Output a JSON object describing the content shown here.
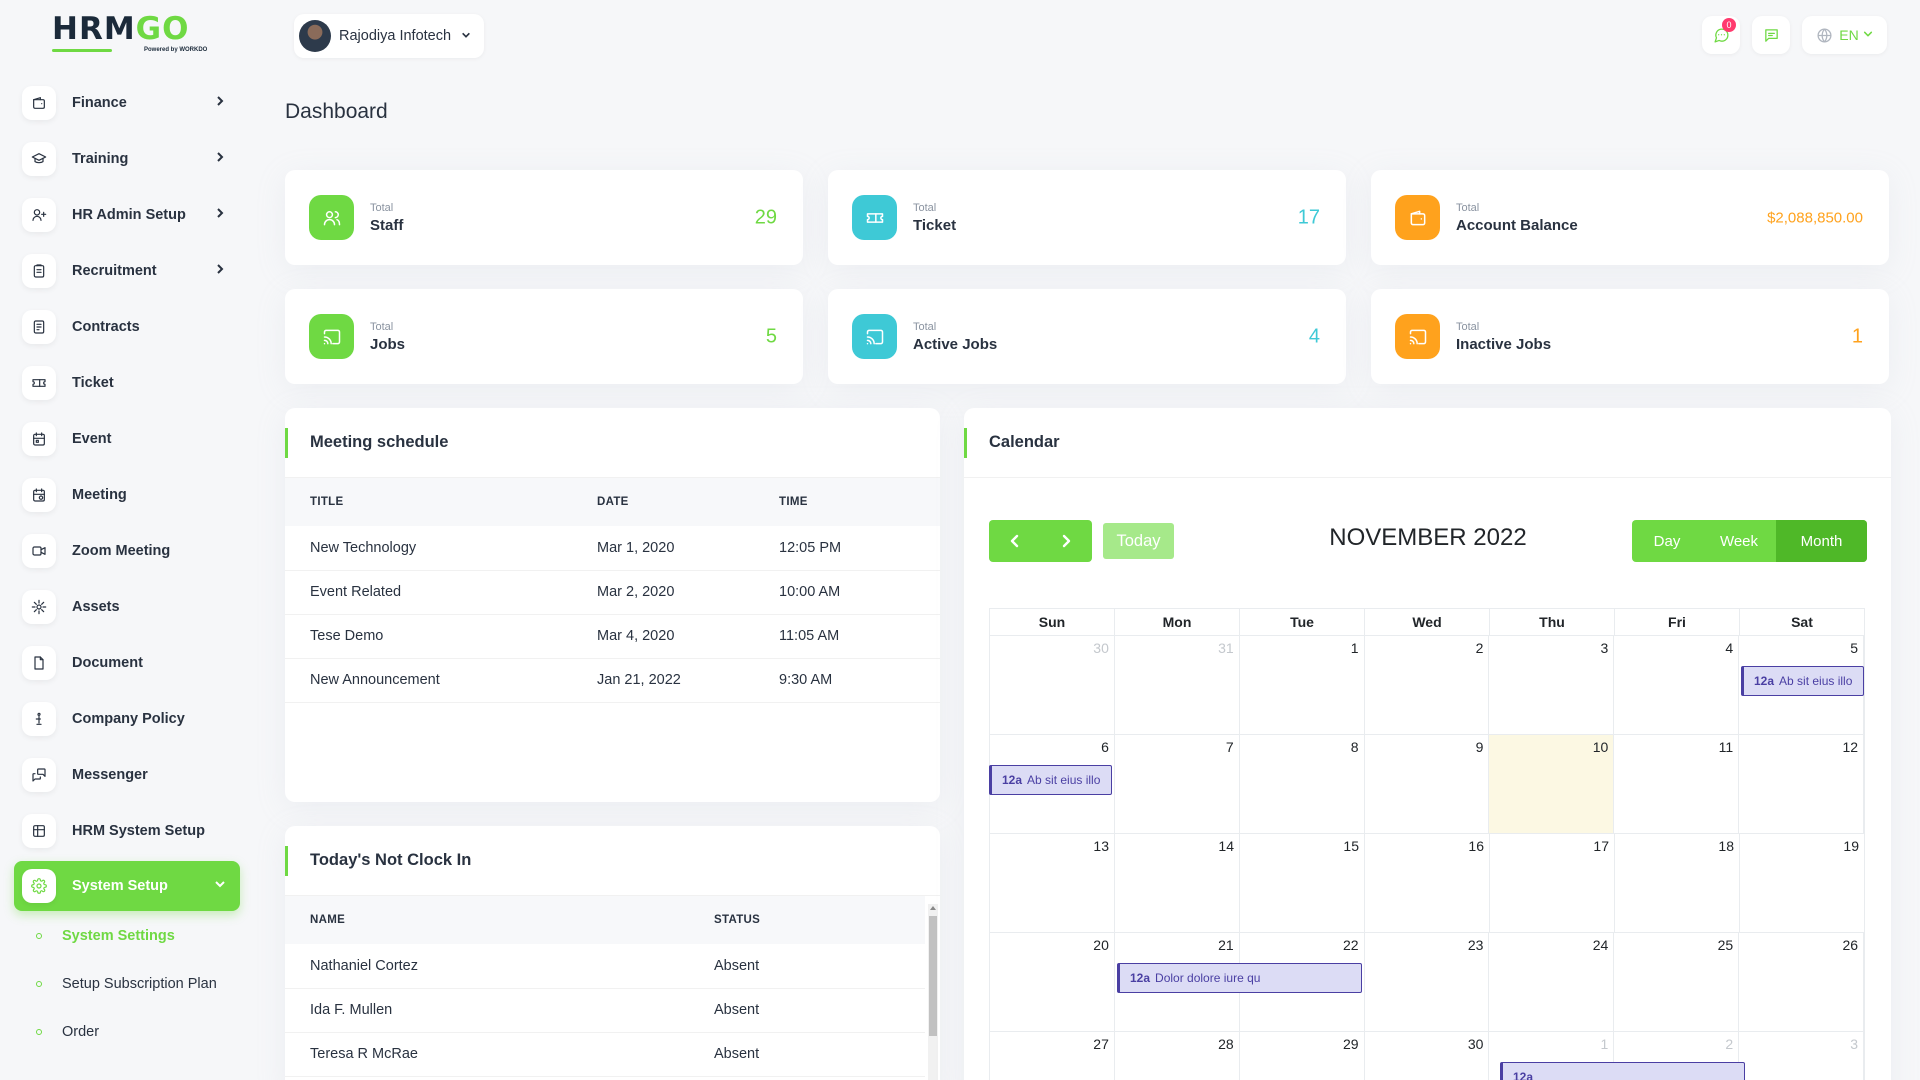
{
  "brand": {
    "logo_text_a": "HRM",
    "logo_text_b": "GO",
    "powered": "Powered by WORKDO"
  },
  "sidebar": {
    "items": [
      {
        "label": "Finance",
        "icon": "wallet-icon",
        "chevron": true
      },
      {
        "label": "Training",
        "icon": "graduation-cap-icon",
        "chevron": true
      },
      {
        "label": "HR Admin Setup",
        "icon": "user-plus-icon",
        "chevron": true
      },
      {
        "label": "Recruitment",
        "icon": "clipboard-icon",
        "chevron": true
      },
      {
        "label": "Contracts",
        "icon": "contract-icon",
        "chevron": false
      },
      {
        "label": "Ticket",
        "icon": "ticket-icon",
        "chevron": false
      },
      {
        "label": "Event",
        "icon": "calendar-event-icon",
        "chevron": false
      },
      {
        "label": "Meeting",
        "icon": "calendar-time-icon",
        "chevron": false
      },
      {
        "label": "Zoom Meeting",
        "icon": "video-icon",
        "chevron": false
      },
      {
        "label": "Assets",
        "icon": "asset-icon",
        "chevron": false
      },
      {
        "label": "Document",
        "icon": "document-icon",
        "chevron": false
      },
      {
        "label": "Company Policy",
        "icon": "policy-icon",
        "chevron": false
      },
      {
        "label": "Messenger",
        "icon": "messages-icon",
        "chevron": false
      },
      {
        "label": "HRM System Setup",
        "icon": "table-icon",
        "chevron": false
      },
      {
        "label": "System Setup",
        "icon": "settings-icon",
        "chevron": true,
        "active": true
      }
    ],
    "subitems": [
      {
        "label": "System Settings",
        "current": true
      },
      {
        "label": "Setup Subscription Plan",
        "current": false
      },
      {
        "label": "Order",
        "current": false
      }
    ]
  },
  "topbar": {
    "company": "Rajodiya Infotech",
    "notification_count": "0",
    "language": "EN"
  },
  "page": {
    "title": "Dashboard"
  },
  "stats": [
    {
      "small": "Total",
      "label": "Staff",
      "value": "29",
      "color": "#6fd943",
      "icon": "users-icon"
    },
    {
      "small": "Total",
      "label": "Ticket",
      "value": "17",
      "color": "#3ec9d6",
      "icon": "ticket-icon"
    },
    {
      "small": "Total",
      "label": "Account Balance",
      "value": "$2,088,850.00",
      "color": "#ffa21d",
      "icon": "wallet-icon"
    },
    {
      "small": "Total",
      "label": "Jobs",
      "value": "5",
      "color": "#6fd943",
      "icon": "cast-icon"
    },
    {
      "small": "Total",
      "label": "Active Jobs",
      "value": "4",
      "color": "#3ec9d6",
      "icon": "cast-icon"
    },
    {
      "small": "Total",
      "label": "Inactive Jobs",
      "value": "1",
      "color": "#ffa21d",
      "icon": "cast-icon"
    }
  ],
  "meetings": {
    "title": "Meeting schedule",
    "columns": [
      "TITLE",
      "DATE",
      "TIME"
    ],
    "rows": [
      [
        "New Technology",
        "Mar 1, 2020",
        "12:05 PM"
      ],
      [
        "Event Related",
        "Mar 2, 2020",
        "10:00 AM"
      ],
      [
        "Tese Demo",
        "Mar 4, 2020",
        "11:05 AM"
      ],
      [
        "New Announcement",
        "Jan 21, 2022",
        "9:30 AM"
      ]
    ]
  },
  "notclockin": {
    "title": "Today's Not Clock In",
    "columns": [
      "NAME",
      "STATUS"
    ],
    "rows": [
      [
        "Nathaniel Cortez",
        "Absent"
      ],
      [
        "Ida F. Mullen",
        "Absent"
      ],
      [
        "Teresa R McRae",
        "Absent"
      ]
    ]
  },
  "calendar": {
    "title": "Calendar",
    "month_title": "NOVEMBER 2022",
    "today_label": "Today",
    "views": [
      "Day",
      "Week",
      "Month"
    ],
    "active_view": "Month",
    "weekdays": [
      "Sun",
      "Mon",
      "Tue",
      "Wed",
      "Thu",
      "Fri",
      "Sat"
    ],
    "weeks": [
      [
        "30",
        "31",
        "1",
        "2",
        "3",
        "4",
        "5"
      ],
      [
        "6",
        "7",
        "8",
        "9",
        "10",
        "11",
        "12"
      ],
      [
        "13",
        "14",
        "15",
        "16",
        "17",
        "18",
        "19"
      ],
      [
        "20",
        "21",
        "22",
        "23",
        "24",
        "25",
        "26"
      ],
      [
        "27",
        "28",
        "29",
        "30",
        "1",
        "2",
        "3"
      ]
    ],
    "events": [
      {
        "time": "12a",
        "title": "Ab sit eius illo"
      },
      {
        "time": "12a",
        "title": "Ab sit eius illo"
      },
      {
        "time": "12a",
        "title": "Dolor dolore iure qu"
      },
      {
        "time": "12a",
        "title": ""
      }
    ]
  }
}
